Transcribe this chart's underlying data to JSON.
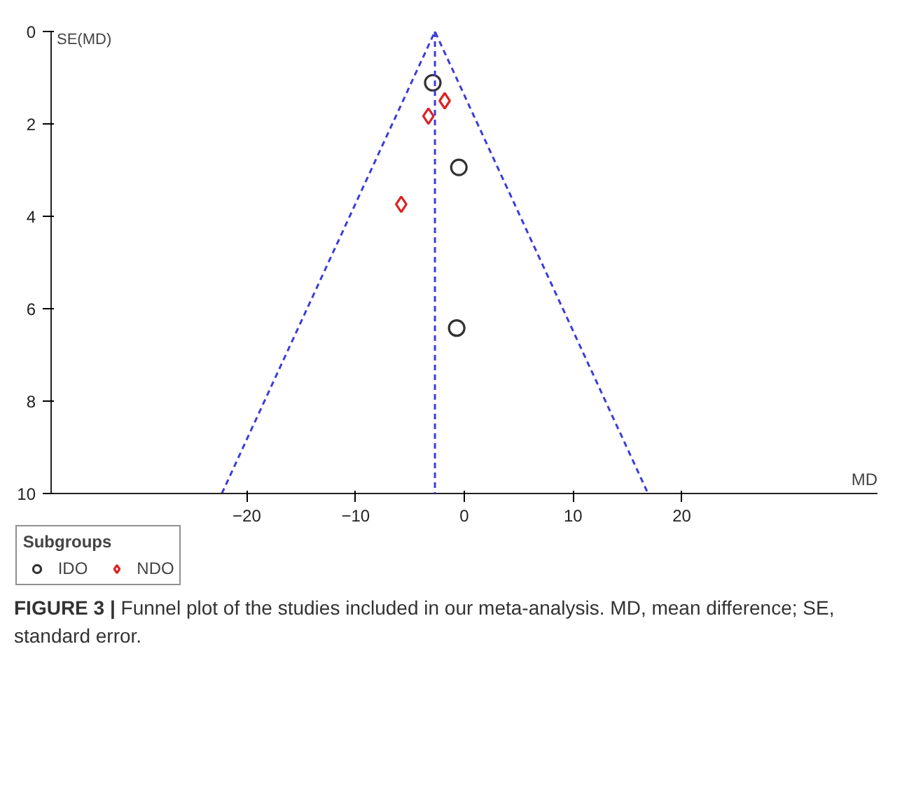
{
  "chart_data": {
    "type": "scatter",
    "xlabel": "MD",
    "ylabel": "SE(MD)",
    "xlim": [
      -38,
      38
    ],
    "ylim": [
      10,
      0
    ],
    "xticks": [
      -20,
      -10,
      0,
      10,
      20
    ],
    "yticks": [
      0,
      2,
      4,
      6,
      8,
      10
    ],
    "grid": false,
    "legend": "bottom",
    "legend_title": "Subgroups",
    "series": [
      {
        "name": "IDO",
        "type": "scatter",
        "marker": "circle",
        "color": "#333333",
        "x": [
          -2.9,
          -0.5,
          -0.7
        ],
        "values": [
          1.11,
          2.94,
          6.42
        ]
      },
      {
        "name": "NDO",
        "type": "scatter",
        "marker": "diamond",
        "color": "#dd2222",
        "x": [
          -1.8,
          -3.3,
          -5.8
        ],
        "values": [
          1.5,
          1.83,
          3.74
        ]
      },
      {
        "type": "line",
        "line_style": "dashed",
        "color": "#3c3cdc",
        "x": [
          -22.3,
          -2.7,
          16.9
        ],
        "values": [
          10,
          0,
          10
        ]
      }
    ],
    "ref_lines": [
      {
        "axis": "x",
        "value": -2.7,
        "color": "#3c3cdc",
        "line_style": "dashed"
      }
    ],
    "annotations": [
      "FIGURE 3 | Funnel plot of the studies included in our meta-analysis. MD, mean difference; SE, standard error."
    ]
  }
}
